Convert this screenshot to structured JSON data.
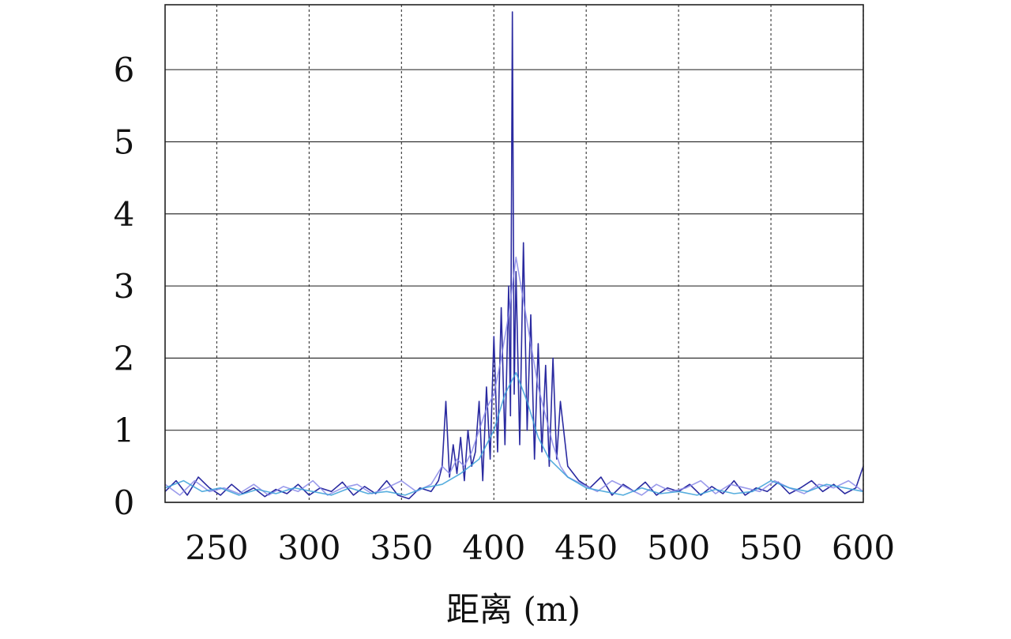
{
  "chart_data": {
    "type": "line",
    "title": "",
    "xlabel": "距离 (m)",
    "ylabel": "",
    "xlim": [
      222,
      600
    ],
    "ylim": [
      0,
      6.9
    ],
    "xticks": [
      250,
      300,
      350,
      400,
      450,
      500,
      550,
      600
    ],
    "yticks": [
      0,
      1,
      2,
      3,
      4,
      5,
      6
    ],
    "grid": true,
    "legend": "none",
    "series": [
      {
        "color": "#2a2aa0",
        "x": [
          222,
          228,
          234,
          240,
          246,
          252,
          258,
          264,
          270,
          276,
          282,
          288,
          294,
          300,
          306,
          312,
          318,
          324,
          330,
          336,
          342,
          348,
          354,
          360,
          366,
          370,
          372,
          374,
          376,
          378,
          380,
          382,
          384,
          386,
          388,
          390,
          392,
          394,
          396,
          398,
          400,
          402,
          404,
          406,
          408,
          409,
          410,
          411,
          412,
          414,
          416,
          418,
          420,
          422,
          424,
          426,
          428,
          430,
          432,
          434,
          436,
          440,
          446,
          452,
          458,
          464,
          470,
          476,
          482,
          488,
          494,
          500,
          506,
          512,
          518,
          524,
          530,
          536,
          542,
          548,
          554,
          560,
          566,
          572,
          578,
          584,
          590,
          596,
          600
        ],
        "y": [
          0.15,
          0.3,
          0.1,
          0.35,
          0.2,
          0.1,
          0.25,
          0.12,
          0.2,
          0.08,
          0.18,
          0.12,
          0.25,
          0.1,
          0.2,
          0.15,
          0.28,
          0.1,
          0.22,
          0.12,
          0.3,
          0.1,
          0.05,
          0.2,
          0.15,
          0.3,
          0.5,
          1.4,
          0.35,
          0.8,
          0.4,
          0.9,
          0.3,
          1.0,
          0.5,
          0.7,
          1.4,
          0.3,
          1.6,
          0.6,
          2.3,
          0.7,
          2.7,
          0.8,
          3.0,
          1.2,
          6.8,
          1.5,
          3.2,
          0.8,
          3.6,
          1.0,
          2.6,
          0.6,
          2.2,
          0.7,
          1.9,
          0.5,
          2.0,
          0.6,
          1.4,
          0.5,
          0.3,
          0.2,
          0.35,
          0.1,
          0.25,
          0.15,
          0.28,
          0.1,
          0.2,
          0.15,
          0.25,
          0.1,
          0.22,
          0.12,
          0.3,
          0.1,
          0.2,
          0.15,
          0.28,
          0.12,
          0.2,
          0.3,
          0.15,
          0.25,
          0.12,
          0.2,
          0.5
        ]
      },
      {
        "color": "#8a8ae8",
        "x": [
          222,
          230,
          238,
          246,
          254,
          262,
          270,
          278,
          286,
          294,
          302,
          310,
          318,
          326,
          334,
          342,
          350,
          358,
          366,
          372,
          376,
          380,
          384,
          388,
          392,
          396,
          400,
          404,
          408,
          412,
          416,
          420,
          424,
          428,
          432,
          436,
          440,
          448,
          456,
          464,
          472,
          480,
          488,
          496,
          504,
          512,
          520,
          528,
          536,
          544,
          552,
          560,
          568,
          576,
          584,
          592,
          600
        ],
        "y": [
          0.25,
          0.1,
          0.3,
          0.15,
          0.2,
          0.12,
          0.25,
          0.1,
          0.22,
          0.15,
          0.3,
          0.1,
          0.2,
          0.25,
          0.12,
          0.2,
          0.3,
          0.15,
          0.25,
          0.5,
          0.4,
          0.6,
          0.5,
          0.7,
          1.0,
          1.3,
          1.5,
          2.0,
          2.6,
          3.4,
          2.8,
          2.2,
          1.6,
          1.2,
          0.8,
          0.5,
          0.35,
          0.25,
          0.15,
          0.3,
          0.2,
          0.1,
          0.25,
          0.15,
          0.2,
          0.3,
          0.12,
          0.25,
          0.2,
          0.15,
          0.3,
          0.2,
          0.12,
          0.25,
          0.2,
          0.3,
          0.15
        ]
      },
      {
        "color": "#3aa0d8",
        "x": [
          222,
          232,
          242,
          252,
          262,
          272,
          282,
          292,
          302,
          312,
          322,
          332,
          342,
          352,
          362,
          372,
          382,
          392,
          400,
          406,
          412,
          418,
          424,
          430,
          440,
          450,
          460,
          470,
          480,
          490,
          500,
          510,
          520,
          530,
          540,
          550,
          560,
          570,
          580,
          590,
          600
        ],
        "y": [
          0.2,
          0.3,
          0.15,
          0.2,
          0.1,
          0.18,
          0.12,
          0.2,
          0.15,
          0.1,
          0.2,
          0.12,
          0.15,
          0.1,
          0.2,
          0.25,
          0.4,
          0.6,
          1.0,
          1.5,
          1.8,
          1.4,
          0.9,
          0.6,
          0.35,
          0.2,
          0.15,
          0.1,
          0.2,
          0.12,
          0.15,
          0.1,
          0.18,
          0.12,
          0.15,
          0.3,
          0.2,
          0.15,
          0.25,
          0.2,
          0.15
        ]
      }
    ]
  }
}
